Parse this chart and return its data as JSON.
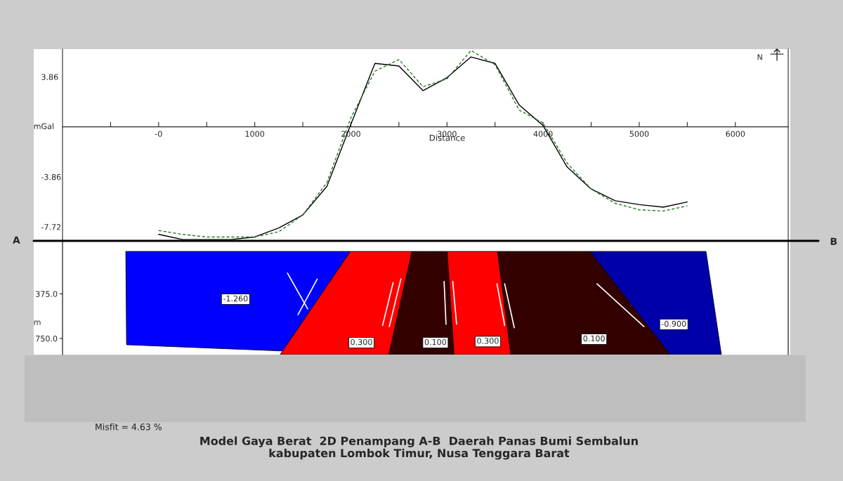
{
  "chart_data": [
    {
      "type": "line",
      "xlabel": "Distance",
      "ylabel": "mGal",
      "x": [
        0,
        250,
        500,
        750,
        1000,
        1250,
        1500,
        1750,
        2000,
        2250,
        2500,
        2750,
        3000,
        3250,
        3500,
        3750,
        4000,
        4250,
        4500,
        4750,
        5000,
        5250,
        5500
      ],
      "series": [
        {
          "color": "#000000",
          "line_style": "solid",
          "values": [
            -8.3,
            -8.7,
            -8.7,
            -8.7,
            -8.5,
            -7.8,
            -6.8,
            -4.6,
            0.2,
            4.9,
            4.7,
            2.8,
            3.8,
            5.4,
            4.9,
            1.7,
            0.1,
            -3.1,
            -4.8,
            -5.7,
            -6.0,
            -6.2,
            -5.8
          ]
        },
        {
          "color": "#2a7a2a",
          "line_style": "dashed",
          "values": [
            -8.0,
            -8.3,
            -8.5,
            -8.5,
            -8.5,
            -8.1,
            -6.8,
            -4.3,
            0.7,
            4.3,
            5.2,
            3.1,
            3.7,
            5.9,
            4.8,
            1.3,
            0.3,
            -2.8,
            -4.8,
            -5.9,
            -6.4,
            -6.5,
            -6.1
          ]
        }
      ],
      "xlim": [
        -1000,
        6550
      ],
      "ylim": [
        -8.8,
        6.0
      ],
      "xticks": [
        {
          "value": -500,
          "label": null
        },
        {
          "value": 0,
          "label": "-0"
        },
        {
          "value": 500,
          "label": null
        },
        1000,
        {
          "value": 1500,
          "label": null
        },
        2000,
        {
          "value": 2500,
          "label": null
        },
        3000,
        {
          "value": 3500,
          "label": null
        },
        4000,
        {
          "value": 4500,
          "label": null
        },
        5000,
        {
          "value": 5500,
          "label": null
        },
        6000
      ],
      "yticks": [
        3.86,
        -3.86,
        -7.72
      ],
      "annotations": [
        "N"
      ],
      "grid": false,
      "legend": false
    },
    {
      "type": "other",
      "ylabel": "m",
      "title": "Model Gaya Berat  2D Penampang A-B  Daerah Panas Bumi Sembalun\nkabupaten Lombok Timur, Nusa Tenggara Barat",
      "annotations": [
        "375.0",
        "750.0",
        "-1.260",
        "0.300",
        "0.100",
        "0.300",
        "0.100",
        "-0.900",
        "A",
        "B",
        "Misfit = 4.63 %"
      ]
    }
  ]
}
